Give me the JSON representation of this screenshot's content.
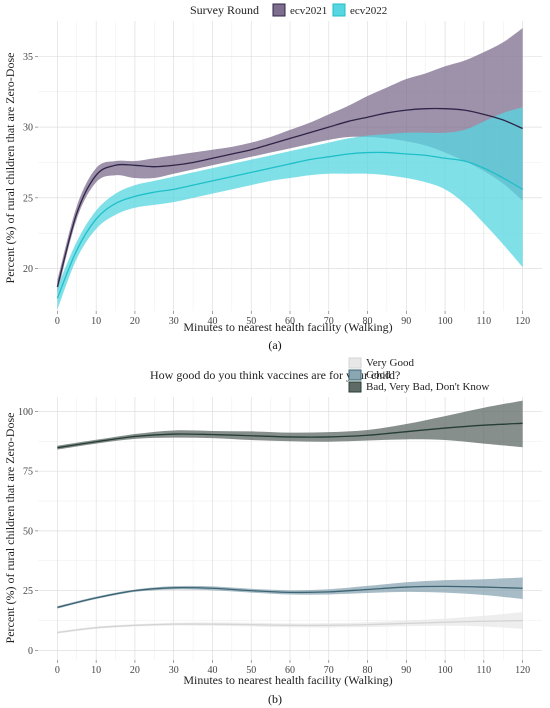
{
  "chart_data": [
    {
      "type": "line",
      "panel_label": "(a)",
      "legend_title": "Survey Round",
      "xlabel": "Minutes to nearest health facility (Walking)",
      "ylabel": "Percent (%) of rural children that are Zero-Dose",
      "xlim": [
        -5,
        125
      ],
      "ylim": [
        17,
        37.5
      ],
      "x_ticks": [
        0,
        10,
        20,
        30,
        40,
        50,
        60,
        70,
        80,
        90,
        100,
        110,
        120
      ],
      "y_ticks": [
        20,
        25,
        30,
        35
      ],
      "grid": true,
      "legend_position": "top",
      "colors": {
        "ecv2021": "#2e2447",
        "ecv2022": "#1fbfc9"
      },
      "band_colors": {
        "ecv2021": "#7d6e8e",
        "ecv2022": "#56d6e0"
      },
      "x": [
        0,
        5,
        10,
        15,
        20,
        25,
        30,
        35,
        40,
        45,
        50,
        55,
        60,
        65,
        70,
        75,
        80,
        85,
        90,
        95,
        100,
        105,
        110,
        115,
        120
      ],
      "series": [
        {
          "name": "ecv2021",
          "values": [
            18.7,
            23.9,
            26.6,
            27.3,
            27.3,
            27.2,
            27.3,
            27.5,
            27.8,
            28.1,
            28.4,
            28.8,
            29.2,
            29.6,
            30.0,
            30.4,
            30.7,
            31.0,
            31.2,
            31.3,
            31.3,
            31.2,
            30.9,
            30.5,
            29.9
          ],
          "lower": [
            18.3,
            23.5,
            26.1,
            26.6,
            26.4,
            26.4,
            26.7,
            27.0,
            27.3,
            27.6,
            27.9,
            28.2,
            28.5,
            28.8,
            29.1,
            29.3,
            29.3,
            29.2,
            29.0,
            28.7,
            28.2,
            27.6,
            26.9,
            26.0,
            24.8
          ],
          "upper": [
            19.2,
            24.4,
            27.1,
            27.6,
            27.6,
            27.8,
            28.0,
            28.2,
            28.4,
            28.6,
            28.9,
            29.3,
            29.8,
            30.3,
            30.9,
            31.5,
            32.2,
            32.8,
            33.4,
            33.8,
            34.3,
            34.7,
            35.3,
            36.0,
            37.0
          ]
        },
        {
          "name": "ecv2022",
          "values": [
            17.9,
            21.3,
            23.5,
            24.6,
            25.1,
            25.4,
            25.6,
            25.9,
            26.2,
            26.5,
            26.8,
            27.1,
            27.4,
            27.7,
            27.9,
            28.1,
            28.2,
            28.2,
            28.1,
            28.0,
            27.8,
            27.6,
            27.1,
            26.4,
            25.6
          ],
          "lower": [
            17.1,
            20.7,
            22.8,
            23.8,
            24.3,
            24.5,
            24.7,
            25.0,
            25.3,
            25.6,
            25.9,
            26.2,
            26.4,
            26.6,
            26.7,
            26.7,
            26.7,
            26.6,
            26.4,
            26.1,
            25.6,
            24.6,
            23.2,
            21.7,
            20.1
          ],
          "upper": [
            18.7,
            21.9,
            24.1,
            25.3,
            25.9,
            26.2,
            26.5,
            26.8,
            27.1,
            27.4,
            27.7,
            28.0,
            28.3,
            28.6,
            28.9,
            29.2,
            29.4,
            29.5,
            29.6,
            29.6,
            29.6,
            29.8,
            30.4,
            31.0,
            31.4
          ]
        }
      ]
    },
    {
      "type": "line",
      "panel_label": "(b)",
      "legend_title": "How good do you think vaccines are for your child?",
      "xlabel": "Minutes to nearest health facility (Walking)",
      "ylabel": "Percent (%) of rural children that are Zero-Dose",
      "xlim": [
        -5,
        125
      ],
      "ylim": [
        -4,
        106
      ],
      "x_ticks": [
        0,
        10,
        20,
        30,
        40,
        50,
        60,
        70,
        80,
        90,
        100,
        110,
        120
      ],
      "y_ticks": [
        0,
        25,
        50,
        75,
        100
      ],
      "grid": true,
      "legend_position": "top",
      "colors": {
        "Very Good": "#d4d4d4",
        "Good": "#3d6473",
        "Bad, Very Bad, Don't Know": "#253d36"
      },
      "band_colors": {
        "Very Good": "#e8e8e8",
        "Good": "#8aa6b3",
        "Bad, Very Bad, Don't Know": "#5f6a66"
      },
      "x": [
        0,
        10,
        20,
        30,
        40,
        50,
        60,
        70,
        80,
        90,
        100,
        110,
        120
      ],
      "series": [
        {
          "name": "Very Good",
          "values": [
            7.5,
            9.5,
            10.5,
            11.0,
            11.0,
            10.8,
            10.5,
            10.5,
            10.8,
            11.3,
            11.8,
            12.2,
            12.5
          ],
          "lower": [
            7.0,
            9.0,
            10.0,
            10.4,
            10.3,
            10.0,
            9.7,
            9.6,
            9.8,
            10.1,
            10.3,
            10.0,
            9.0
          ],
          "upper": [
            8.0,
            10.0,
            11.0,
            11.6,
            11.7,
            11.6,
            11.3,
            11.4,
            11.8,
            12.5,
            13.3,
            14.5,
            16.0
          ]
        },
        {
          "name": "Good",
          "values": [
            18.0,
            22.0,
            25.0,
            26.2,
            26.0,
            25.0,
            24.3,
            24.5,
            25.5,
            26.5,
            26.8,
            26.5,
            26.0
          ],
          "lower": [
            17.5,
            21.5,
            24.5,
            25.5,
            25.2,
            24.2,
            23.4,
            23.4,
            24.0,
            24.5,
            24.2,
            23.2,
            21.5
          ],
          "upper": [
            18.5,
            22.5,
            25.5,
            26.9,
            26.8,
            25.8,
            25.2,
            25.6,
            27.0,
            28.5,
            29.4,
            29.8,
            30.5
          ]
        },
        {
          "name": "Bad, Very Bad, Don't Know",
          "values": [
            84.8,
            87.3,
            89.5,
            90.5,
            90.3,
            89.8,
            89.3,
            89.3,
            90.0,
            91.5,
            93.0,
            94.2,
            95.0
          ],
          "lower": [
            84.0,
            86.5,
            88.5,
            89.0,
            88.8,
            88.0,
            87.5,
            87.3,
            87.8,
            88.3,
            88.0,
            86.5,
            85.0
          ],
          "upper": [
            85.6,
            88.1,
            90.5,
            92.0,
            91.8,
            91.6,
            91.1,
            91.3,
            92.2,
            94.7,
            98.0,
            101.5,
            104.5
          ]
        }
      ]
    }
  ]
}
